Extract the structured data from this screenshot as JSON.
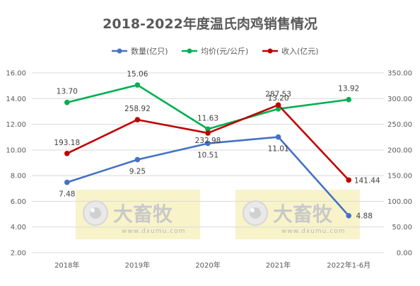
{
  "chart_data": {
    "type": "line",
    "title": "2018-2022年度温氏肉鸡销售情况",
    "categories": [
      "2018年",
      "2019年",
      "2020年",
      "2021年",
      "2022年1-6月"
    ],
    "left_axis": {
      "min": 2,
      "max": 16,
      "step": 2,
      "ticks": [
        "2.00",
        "4.00",
        "6.00",
        "8.00",
        "10.00",
        "12.00",
        "14.00",
        "16.00"
      ]
    },
    "right_axis": {
      "min": 0,
      "max": 350,
      "step": 50,
      "ticks": [
        "0.00",
        "50.00",
        "100.00",
        "150.00",
        "200.00",
        "250.00",
        "300.00",
        "350.00"
      ]
    },
    "grid": true,
    "legend_position": "top",
    "series": [
      {
        "name": "数量(亿只)",
        "axis": "left",
        "color": "#4472c4",
        "values": [
          7.48,
          9.25,
          10.51,
          11.01,
          4.88
        ],
        "labels": [
          "7.48",
          "9.25",
          "10.51",
          "11.01",
          "4.88"
        ]
      },
      {
        "name": "均价(元/公斤)",
        "axis": "left",
        "color": "#00b050",
        "values": [
          13.7,
          15.06,
          11.63,
          13.2,
          13.92
        ],
        "labels": [
          "13.70",
          "15.06",
          "11.63",
          "13.20",
          "13.92"
        ]
      },
      {
        "name": "收入(亿元)",
        "axis": "right",
        "color": "#c00000",
        "values": [
          193.18,
          258.92,
          232.98,
          287.53,
          141.44
        ],
        "labels": [
          "193.18",
          "258.92",
          "232.98",
          "287.53",
          "141.44"
        ]
      }
    ]
  },
  "watermark": {
    "brand": "大畜牧",
    "url": "www.dxumu.com"
  }
}
